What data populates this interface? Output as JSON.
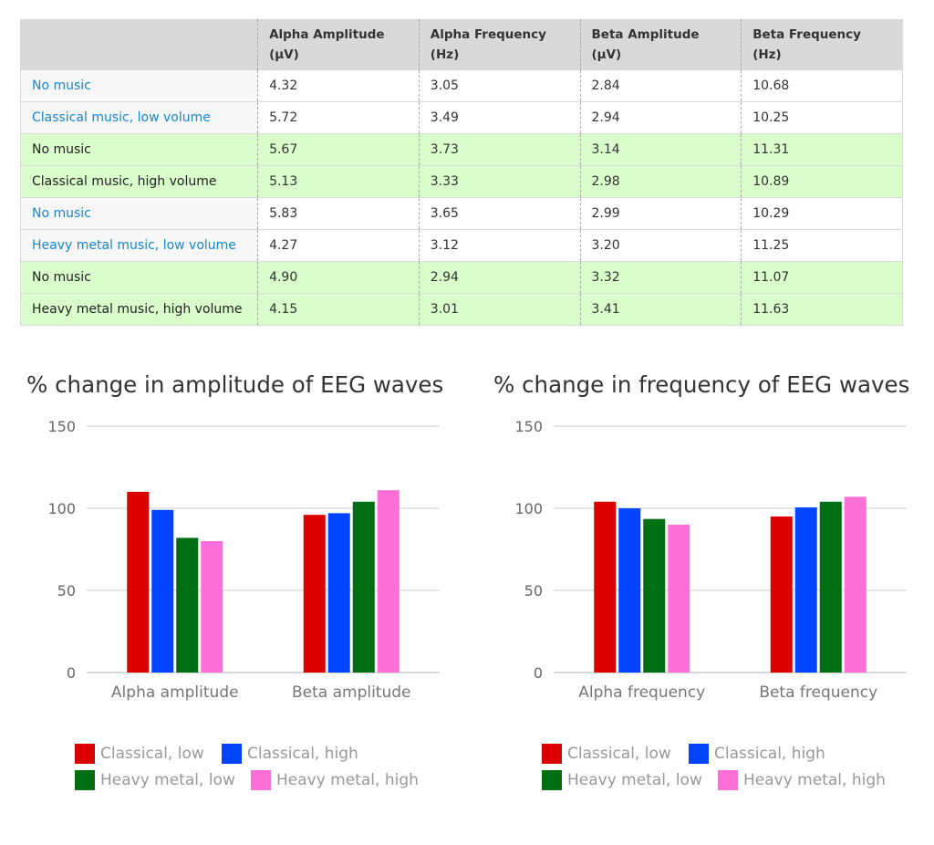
{
  "table": {
    "headers": [
      {
        "line1": "",
        "line2": ""
      },
      {
        "line1": "Alpha Amplitude",
        "line2": "(µV)"
      },
      {
        "line1": "Alpha Frequency",
        "line2": "(Hz)"
      },
      {
        "line1": "Beta Amplitude",
        "line2": "(µV)"
      },
      {
        "line1": "Beta Frequency",
        "line2": "(Hz)"
      }
    ],
    "rows": [
      {
        "cells": [
          "No music",
          "4.32",
          "3.05",
          "2.84",
          "10.68"
        ],
        "style": "white"
      },
      {
        "cells": [
          "Classical music, low volume",
          "5.72",
          "3.49",
          "2.94",
          "10.25"
        ],
        "style": "white"
      },
      {
        "cells": [
          "No music",
          "5.67",
          "3.73",
          "3.14",
          "11.31"
        ],
        "style": "green"
      },
      {
        "cells": [
          "Classical music, high volume",
          "5.13",
          "3.33",
          "2.98",
          "10.89"
        ],
        "style": "green"
      },
      {
        "cells": [
          "No music",
          "5.83",
          "3.65",
          "2.99",
          "10.29"
        ],
        "style": "white"
      },
      {
        "cells": [
          "Heavy metal music, low volume",
          "4.27",
          "3.12",
          "3.20",
          "11.25"
        ],
        "style": "white"
      },
      {
        "cells": [
          "No music",
          "4.90",
          "2.94",
          "3.32",
          "11.07"
        ],
        "style": "green"
      },
      {
        "cells": [
          "Heavy metal music, high volume",
          "4.15",
          "3.01",
          "3.41",
          "11.63"
        ],
        "style": "green"
      }
    ]
  },
  "chart_data": [
    {
      "type": "bar",
      "title": "% change in amplitude of EEG waves",
      "categories": [
        "Alpha amplitude",
        "Beta amplitude"
      ],
      "series": [
        {
          "name": "Classical, low",
          "color": "#dd0000",
          "values": [
            110,
            96
          ]
        },
        {
          "name": "Classical, high",
          "color": "#0044ff",
          "values": [
            99,
            97
          ]
        },
        {
          "name": "Heavy metal, low",
          "color": "#006e12",
          "values": [
            82,
            104
          ]
        },
        {
          "name": "Heavy metal, high",
          "color": "#ff6fd8",
          "values": [
            80,
            111
          ]
        }
      ],
      "ylim": [
        0,
        150
      ],
      "yticks": [
        0,
        50,
        100,
        150
      ],
      "grid": true,
      "legend_position": "bottom"
    },
    {
      "type": "bar",
      "title": "% change in frequency of EEG waves",
      "categories": [
        "Alpha frequency",
        "Beta frequency"
      ],
      "series": [
        {
          "name": "Classical, low",
          "color": "#dd0000",
          "values": [
            104,
            95
          ]
        },
        {
          "name": "Classical, high",
          "color": "#0044ff",
          "values": [
            100,
            100.5
          ]
        },
        {
          "name": "Heavy metal, low",
          "color": "#006e12",
          "values": [
            93.5,
            104
          ]
        },
        {
          "name": "Heavy metal, high",
          "color": "#ff6fd8",
          "values": [
            90,
            107
          ]
        }
      ],
      "ylim": [
        0,
        150
      ],
      "yticks": [
        0,
        50,
        100,
        150
      ],
      "grid": true,
      "legend_position": "bottom"
    }
  ]
}
